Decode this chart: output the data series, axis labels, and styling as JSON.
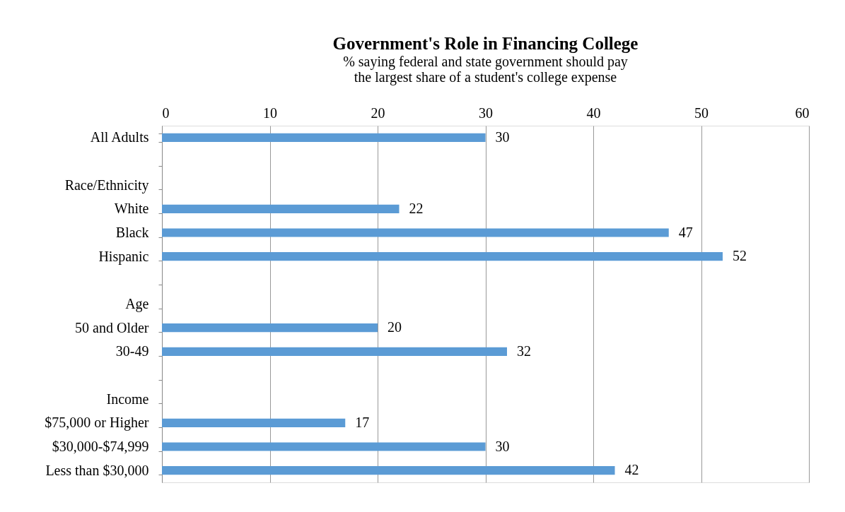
{
  "chart_data": {
    "type": "bar",
    "orientation": "horizontal",
    "title": "Government's Role in Financing College",
    "subtitle": "% saying federal and state government should pay\nthe largest share of a student's college expense",
    "categories": [
      "All Adults",
      null,
      "Race/Ethnicity",
      "White",
      "Black",
      "Hispanic",
      null,
      "Age",
      "50 and Older",
      "30-49",
      null,
      "Income",
      "$75,000 or Higher",
      "$30,000-$74,999",
      "Less than $30,000"
    ],
    "values": [
      30,
      null,
      null,
      22,
      47,
      52,
      null,
      null,
      20,
      32,
      null,
      null,
      17,
      30,
      42
    ],
    "color": "#5b9bd5",
    "xlim": [
      0,
      60
    ],
    "xticks": [
      0,
      10,
      20,
      30,
      40,
      50,
      60
    ],
    "grid": "x",
    "data_labels": true
  }
}
